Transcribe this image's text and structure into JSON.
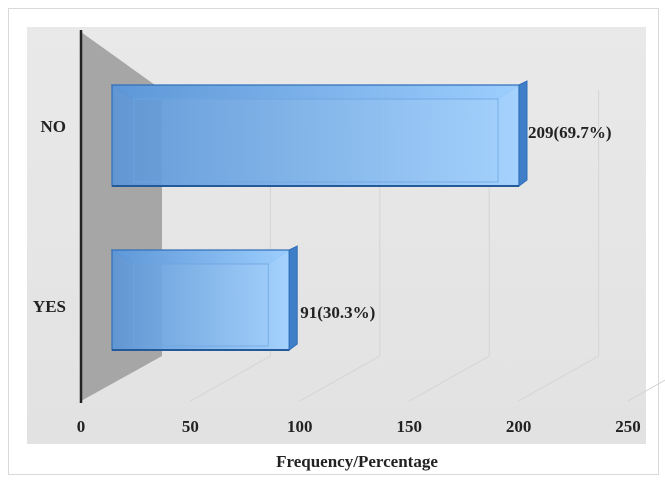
{
  "chart_data": {
    "type": "bar",
    "orientation": "horizontal",
    "categories": [
      "NO",
      "YES"
    ],
    "values": [
      209,
      91
    ],
    "data_labels": [
      "209(69.7%)",
      "91(30.3%)"
    ],
    "xlabel": "Frequency/Percentage",
    "xlim": [
      0,
      250
    ],
    "xticks": [
      0,
      50,
      100,
      150,
      200,
      250
    ],
    "grid": true,
    "bar_color": "#5b9bd5",
    "floor_color": "#a6a6a6",
    "background_color": "#e6e6e6"
  }
}
